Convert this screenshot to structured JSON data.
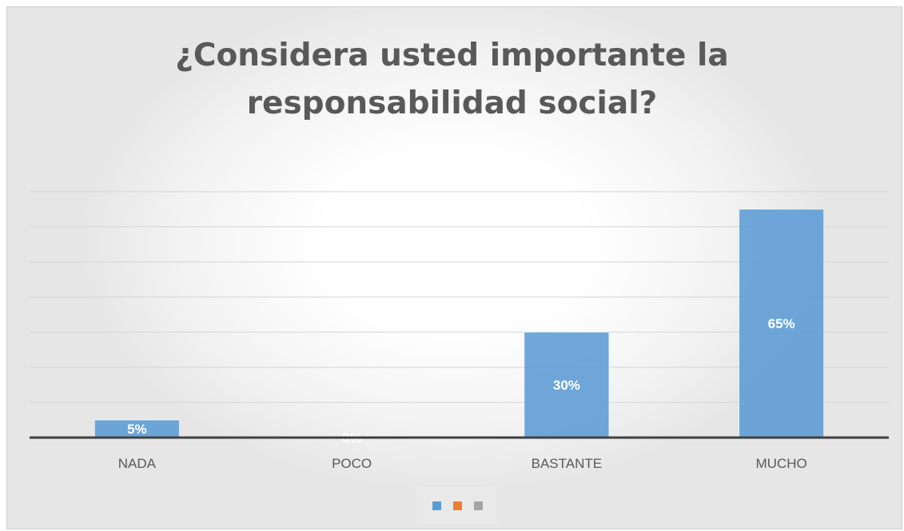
{
  "chart_data": {
    "type": "bar",
    "title_lines": [
      "¿Considera usted importante la",
      "responsabilidad social?"
    ],
    "categories": [
      "NADA",
      "POCO",
      "BASTANTE",
      "MUCHO"
    ],
    "values": [
      5,
      0,
      30,
      65
    ],
    "data_labels": [
      "5%",
      "0%",
      "30%",
      "65%"
    ],
    "ylim": [
      0,
      70
    ],
    "gridlines": true,
    "legend_position": "bottom",
    "legend_entries": [
      {
        "name": "",
        "color": "#5b9bd5"
      },
      {
        "name": "",
        "color": "#ed7d31"
      },
      {
        "name": "",
        "color": "#a5a5a5"
      }
    ],
    "bar_color": "#5b9bd5"
  }
}
